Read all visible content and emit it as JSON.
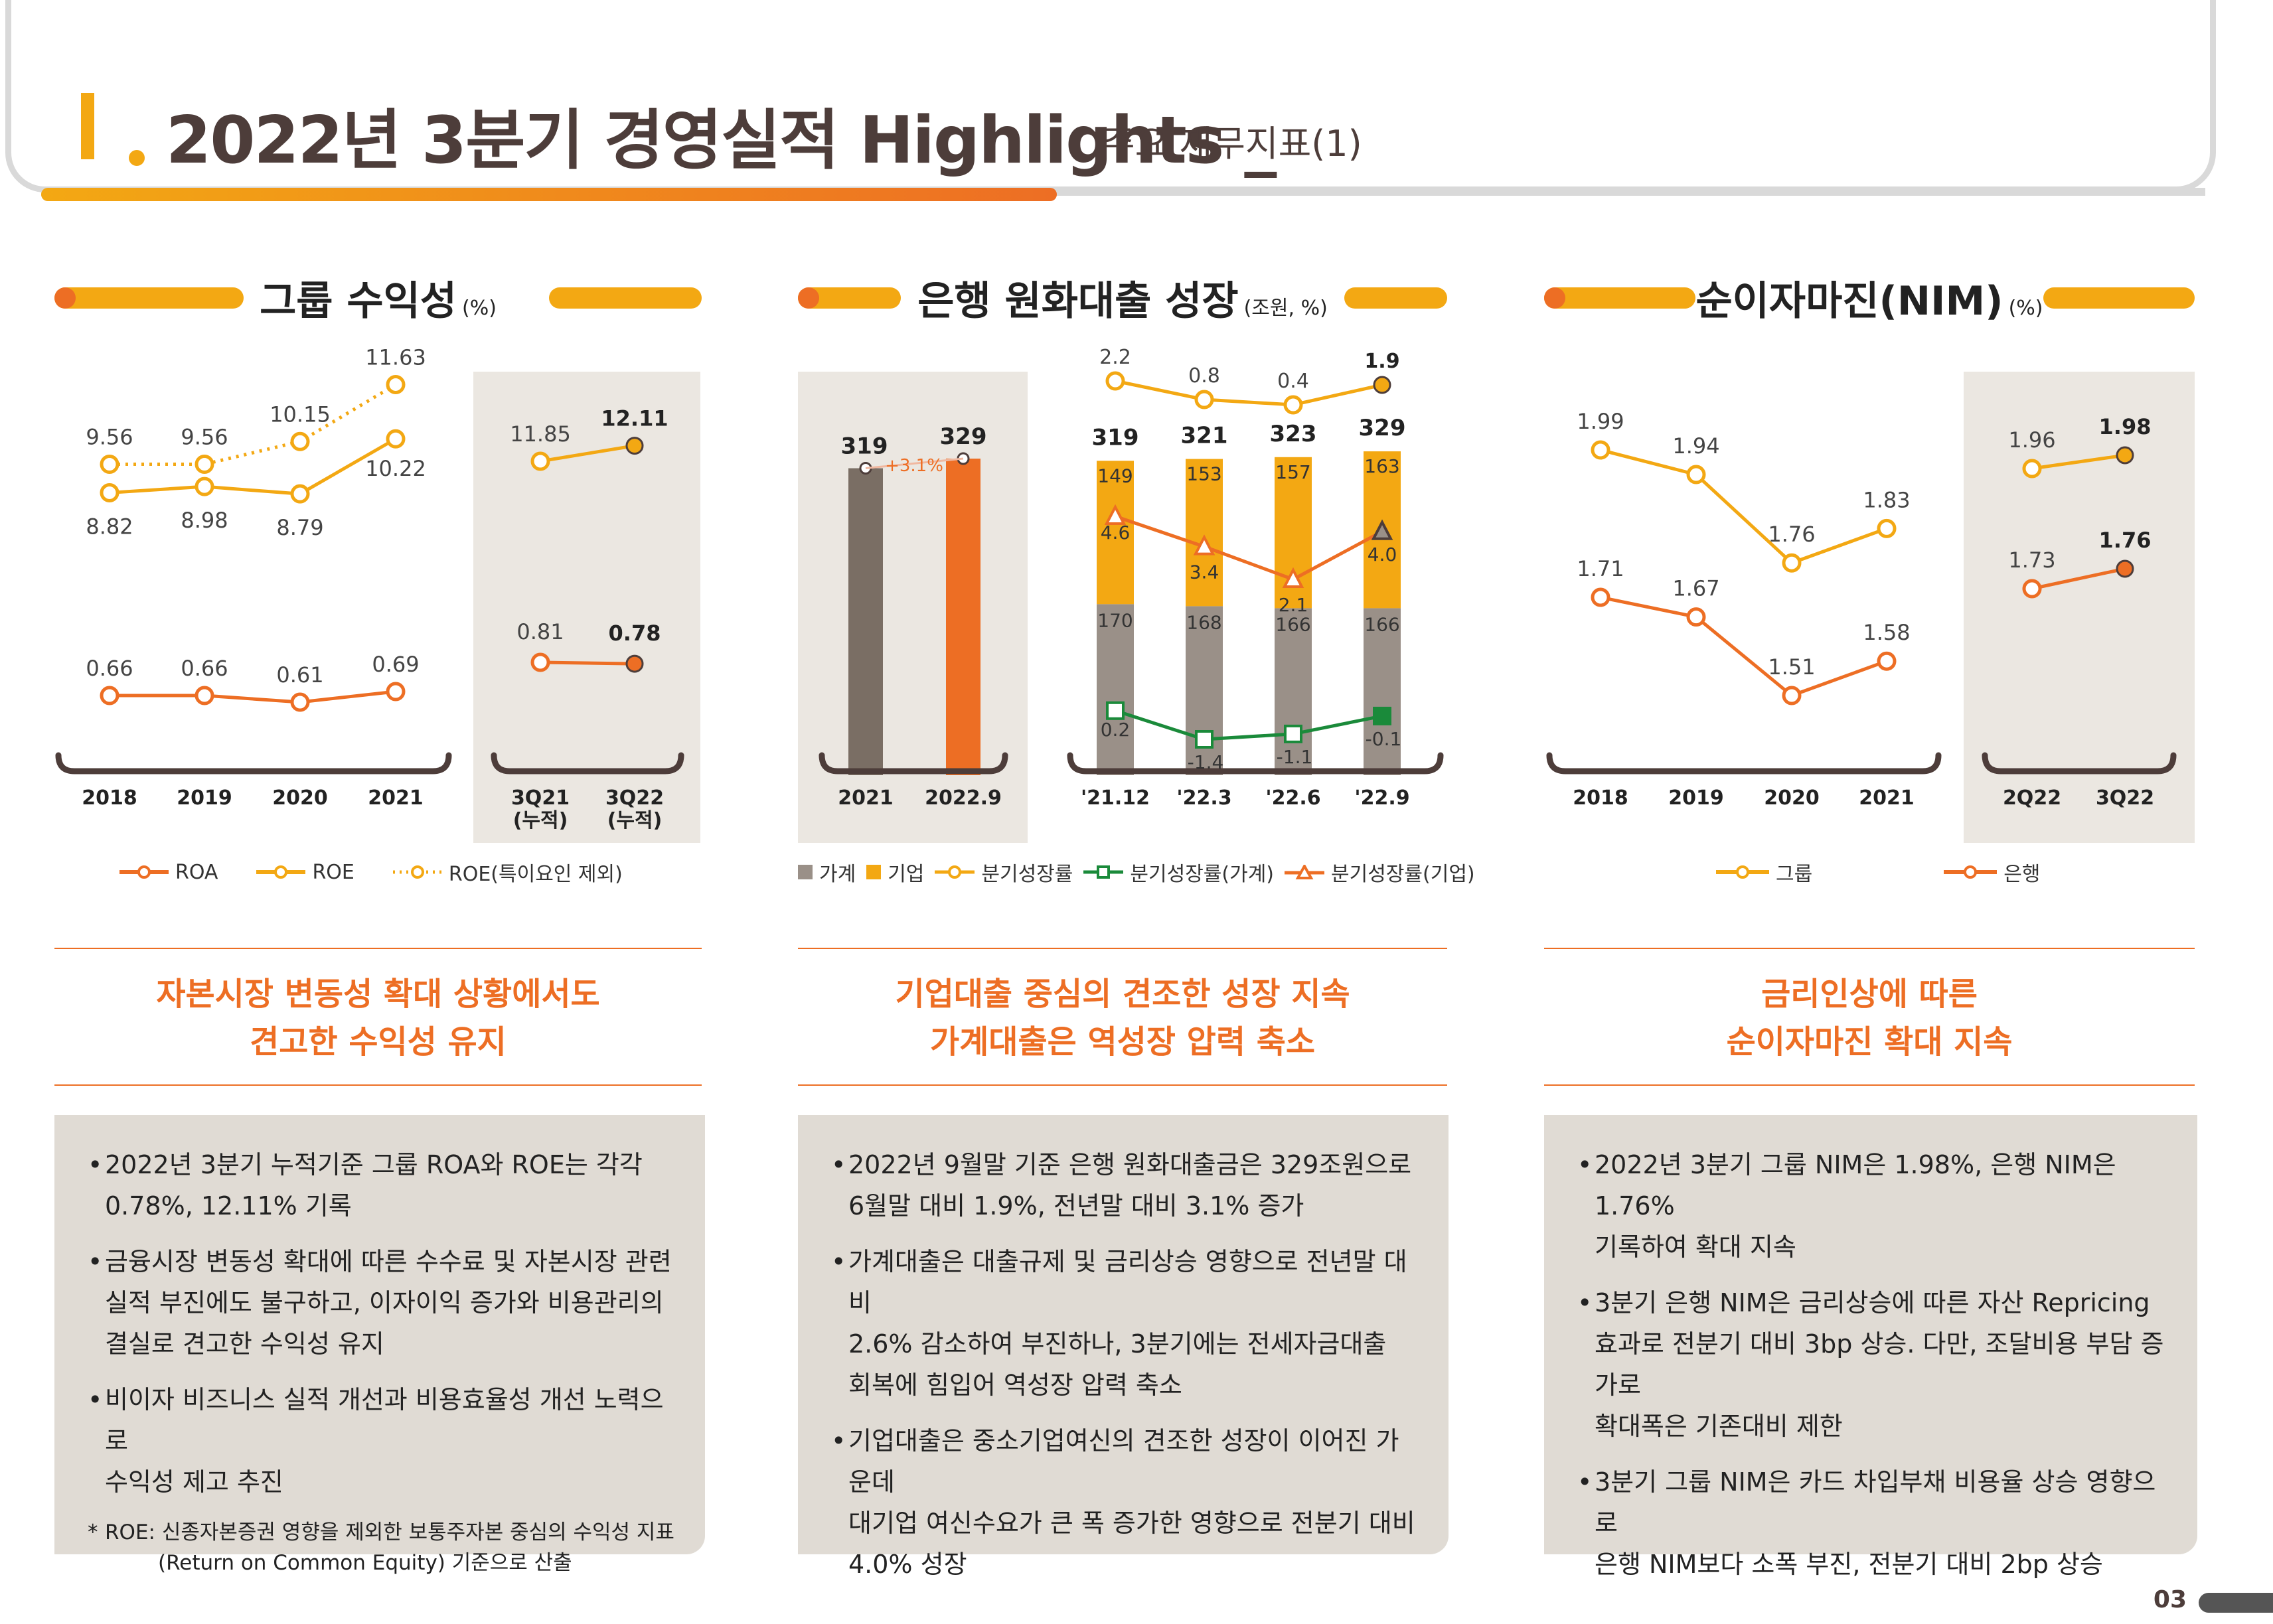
{
  "header": {
    "main_title": "2022년 3분기 경영실적 Highlights _",
    "sub_title": "주요 재무지표(1)"
  },
  "sections": [
    {
      "title": "그룹 수익성",
      "unit": "(%)",
      "legend": [
        "ROA",
        "ROE",
        "ROE(특이요인 제외)"
      ],
      "tagline": [
        "자본시장 변동성 확대 상황에서도",
        "견고한 수익성 유지"
      ],
      "bullets": [
        [
          "2022년 3분기 누적기준 그룹 ROA와 ROE는 각각",
          "0.78%, 12.11% 기록"
        ],
        [
          "금융시장 변동성 확대에 따른 수수료 및 자본시장 관련",
          "실적 부진에도 불구하고, 이자이익 증가와 비용관리의",
          "결실로 견고한 수익성 유지"
        ],
        [
          "비이자 비즈니스 실적 개선과 비용효율성 개선 노력으로",
          "수익성 제고 추진"
        ]
      ],
      "note_star": "*",
      "note": [
        "ROE: 신종자본증권 영향을 제외한 보통주자본 중심의 수익성 지표",
        "(Return on Common Equity) 기준으로 산출"
      ]
    },
    {
      "title": "은행 원화대출 성장",
      "unit": "(조원, %)",
      "legend": [
        "가계",
        "기업",
        "분기성장률",
        "분기성장률(가계)",
        "분기성장률(기업)"
      ],
      "tagline": [
        "기업대출 중심의 견조한 성장 지속",
        "가계대출은 역성장 압력 축소"
      ],
      "bullets": [
        [
          "2022년 9월말 기준 은행 원화대출금은 329조원으로",
          "6월말 대비 1.9%, 전년말 대비 3.1% 증가"
        ],
        [
          "가계대출은 대출규제 및 금리상승 영향으로 전년말 대비",
          "2.6% 감소하여 부진하나, 3분기에는 전세자금대출",
          "회복에 힘입어 역성장 압력 축소"
        ],
        [
          "기업대출은 중소기업여신의 견조한 성장이 이어진 가운데",
          "대기업 여신수요가 큰 폭 증가한 영향으로 전분기 대비",
          "4.0% 성장"
        ]
      ]
    },
    {
      "title": "순이자마진(NIM)",
      "unit": "(%)",
      "legend": [
        "그룹",
        "은행"
      ],
      "tagline": [
        "금리인상에 따른",
        "순이자마진 확대 지속"
      ],
      "bullets": [
        [
          "2022년 3분기 그룹 NIM은 1.98%, 은행 NIM은 1.76%",
          "기록하여 확대 지속"
        ],
        [
          "3분기 은행 NIM은 금리상승에 따른 자산 Repricing",
          "효과로 전분기 대비 3bp 상승. 다만, 조달비용 부담 증가로",
          "확대폭은 기존대비 제한"
        ],
        [
          "3분기 그룹 NIM은 카드 차입부채 비용율 상승 영향으로",
          "은행  NIM보다 소폭 부진, 전분기 대비 2bp 상승"
        ]
      ]
    }
  ],
  "page_number": "03",
  "colors": {
    "orange": "#ed6e24",
    "yellow": "#f3a813",
    "brown": "#7a6e64",
    "gray": "#9a9088",
    "green": "#1a8a3a",
    "panel": "#ebe7e1"
  },
  "chart_data": [
    {
      "type": "line",
      "title": "그룹 수익성",
      "categories": [
        "2018",
        "2019",
        "2020",
        "2021"
      ],
      "series": [
        {
          "name": "ROE(특이요인 제외)",
          "values": [
            9.56,
            9.56,
            10.15,
            11.63
          ]
        },
        {
          "name": "ROE",
          "values": [
            8.82,
            8.98,
            8.79,
            10.22
          ]
        },
        {
          "name": "ROA",
          "values": [
            0.66,
            0.66,
            0.61,
            0.69
          ]
        }
      ],
      "panel": {
        "categories": [
          "3Q21\n(누적)",
          "3Q22\n(누적)"
        ],
        "series": [
          {
            "name": "ROE",
            "values": [
              11.85,
              12.11
            ]
          },
          {
            "name": "ROA",
            "values": [
              0.81,
              0.78
            ]
          }
        ]
      }
    },
    {
      "type": "bar",
      "title": "은행 원화대출 성장",
      "annual": {
        "categories": [
          "2021",
          "2022.9"
        ],
        "values": [
          319,
          329
        ],
        "growth_label": "+3.1%"
      },
      "categories": [
        "'21.12",
        "'22.3",
        "'22.6",
        "'22.9"
      ],
      "totals": [
        319,
        321,
        323,
        329
      ],
      "series": [
        {
          "name": "가계",
          "values": [
            170,
            168,
            166,
            166
          ]
        },
        {
          "name": "기업",
          "values": [
            149,
            153,
            157,
            163
          ]
        }
      ],
      "growth": [
        {
          "name": "분기성장률",
          "values": [
            2.2,
            0.8,
            0.4,
            1.9
          ]
        },
        {
          "name": "분기성장률(기업)",
          "values": [
            4.6,
            3.4,
            2.1,
            4.0
          ]
        },
        {
          "name": "분기성장률(가계)",
          "values": [
            0.2,
            -1.4,
            -1.1,
            -0.1
          ]
        }
      ]
    },
    {
      "type": "line",
      "title": "순이자마진(NIM)",
      "categories": [
        "2018",
        "2019",
        "2020",
        "2021"
      ],
      "series": [
        {
          "name": "그룹",
          "values": [
            1.99,
            1.94,
            1.76,
            1.83
          ]
        },
        {
          "name": "은행",
          "values": [
            1.71,
            1.67,
            1.51,
            1.58
          ]
        }
      ],
      "panel": {
        "categories": [
          "2Q22",
          "3Q22"
        ],
        "series": [
          {
            "name": "그룹",
            "values": [
              1.96,
              1.98
            ]
          },
          {
            "name": "은행",
            "values": [
              1.73,
              1.76
            ]
          }
        ]
      }
    }
  ]
}
